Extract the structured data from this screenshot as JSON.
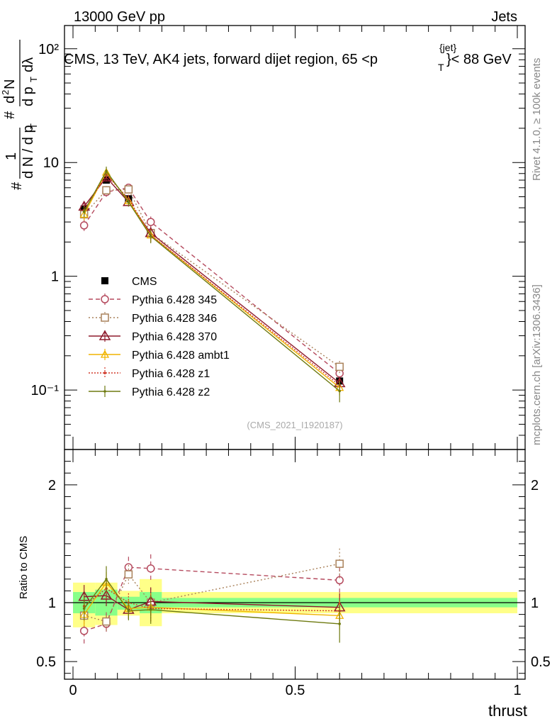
{
  "header": {
    "left": "13000 GeV pp",
    "right": "Jets"
  },
  "side": {
    "rivet": "Rivet 4.1.0, ≥ 100k events",
    "mcplots": "mcplots.cern.ch [arXiv:1306.3436]"
  },
  "watermark": "(CMS_2021_I1920187)",
  "colors": {
    "cms": "#000000",
    "p345": "#b54a5e",
    "p346": "#a9815a",
    "p370": "#8e1a2c",
    "ambt1": "#f0b400",
    "z1": "#d13a2a",
    "z2": "#6e7a10"
  },
  "chart_data": [
    {
      "type": "line",
      "title": "CMS, 13 TeV, AK4 jets, forward dijet region, 65 < p_T^{jet} < 88 GeV",
      "title_parts": {
        "main": "CMS, 13 TeV, AK4 jets, forward dijet region, 65 <p",
        "sub": "T",
        "sup": "{jet}",
        "tail": "}< 88 GeV"
      },
      "ylabel": "1/dN/dp_T # d²N/dp_T dλ",
      "ylabel_parts": {
        "hash1": "#",
        "one": "1",
        "den": "d N / d p",
        "subT": "T",
        "hash2": "#",
        "num": "d",
        "sup2": "2",
        "N": "N",
        "den2a": "d p",
        "den2b": "dλ"
      },
      "yscale": "log",
      "ylim": [
        0.03,
        160
      ],
      "xlim": [
        0,
        1
      ],
      "yticks": [
        {
          "value": 100,
          "label": "10²"
        },
        {
          "value": 10,
          "label": "10"
        },
        {
          "value": 1,
          "label": "1"
        },
        {
          "value": 0.1,
          "label": "10⁻¹"
        }
      ],
      "x": [
        0.025,
        0.075,
        0.125,
        0.175,
        0.6
      ],
      "series": [
        {
          "name": "CMS",
          "values": [
            3.9,
            7.0,
            4.8,
            2.4,
            0.12
          ],
          "errors": [
            0.2,
            0.3,
            0.2,
            0.1,
            0.01
          ]
        },
        {
          "name": "Pythia 6.428 345",
          "values": [
            2.8,
            5.5,
            6.0,
            3.0,
            0.14
          ],
          "errors": [
            0.35,
            0.5,
            0.4,
            0.35,
            0.015
          ]
        },
        {
          "name": "Pythia 6.428 346",
          "values": [
            3.5,
            5.7,
            5.8,
            2.4,
            0.16
          ],
          "errors": [
            0.3,
            0.5,
            0.4,
            0.3,
            0.02
          ]
        },
        {
          "name": "Pythia 6.428 370",
          "values": [
            4.1,
            7.4,
            4.5,
            2.4,
            0.115
          ],
          "errors": [
            0.4,
            0.6,
            0.4,
            0.3,
            0.015
          ]
        },
        {
          "name": "Pythia 6.428 ambt1",
          "values": [
            3.5,
            8.2,
            4.6,
            2.3,
            0.105
          ],
          "errors": [
            0.4,
            0.6,
            0.4,
            0.3,
            0.015
          ]
        },
        {
          "name": "Pythia 6.428 z1",
          "values": [
            3.8,
            7.8,
            4.8,
            2.3,
            0.11
          ],
          "errors": [
            0.4,
            0.6,
            0.4,
            0.3,
            0.015
          ]
        },
        {
          "name": "Pythia 6.428 z2",
          "values": [
            3.7,
            8.4,
            4.5,
            2.25,
            0.098
          ],
          "errors": [
            0.4,
            0.8,
            0.4,
            0.3,
            0.02
          ]
        }
      ]
    },
    {
      "type": "line",
      "ylabel": "Ratio to CMS",
      "xlabel": "thrust",
      "ylim": [
        0.35,
        2.3
      ],
      "xlim": [
        0,
        1
      ],
      "yticks": [
        {
          "value": 0.5,
          "label": "0.5"
        },
        {
          "value": 1,
          "label": "1"
        },
        {
          "value": 2,
          "label": "2"
        }
      ],
      "xticks": [
        {
          "value": 0,
          "label": "0"
        },
        {
          "value": 0.5,
          "label": "0.5"
        },
        {
          "value": 1,
          "label": "1"
        }
      ],
      "bands": [
        {
          "xlo": 0.0,
          "xhi": 0.05,
          "inner": [
            0.91,
            1.09
          ],
          "outer": [
            0.79,
            1.17
          ]
        },
        {
          "xlo": 0.05,
          "xhi": 0.1,
          "inner": [
            0.89,
            1.11
          ],
          "outer": [
            0.81,
            1.17
          ]
        },
        {
          "xlo": 0.1,
          "xhi": 0.15,
          "inner": [
            0.94,
            1.05
          ],
          "outer": [
            0.89,
            1.1
          ]
        },
        {
          "xlo": 0.15,
          "xhi": 0.2,
          "inner": [
            0.91,
            1.09
          ],
          "outer": [
            0.8,
            1.2
          ]
        },
        {
          "xlo": 0.2,
          "xhi": 1.0,
          "inner": [
            0.96,
            1.04
          ],
          "outer": [
            0.91,
            1.09
          ]
        }
      ],
      "x": [
        0.025,
        0.075,
        0.125,
        0.175,
        0.6
      ],
      "series": [
        {
          "name": "Pythia 6.428 345",
          "values": [
            0.76,
            0.82,
            1.3,
            1.29,
            1.19
          ],
          "errors": [
            0.11,
            0.09,
            0.09,
            0.12,
            0.11
          ]
        },
        {
          "name": "Pythia 6.428 346",
          "values": [
            0.89,
            0.84,
            1.24,
            1.0,
            1.33
          ],
          "errors": [
            0.09,
            0.08,
            0.08,
            0.12,
            0.13
          ]
        },
        {
          "name": "Pythia 6.428 370",
          "values": [
            1.05,
            1.06,
            0.94,
            1.01,
            0.96
          ],
          "errors": [
            0.1,
            0.09,
            0.08,
            0.12,
            0.12
          ]
        },
        {
          "name": "Pythia 6.428 ambt1",
          "values": [
            0.9,
            1.17,
            0.95,
            0.96,
            0.89
          ],
          "errors": [
            0.1,
            0.09,
            0.08,
            0.12,
            0.12
          ]
        },
        {
          "name": "Pythia 6.428 z1",
          "values": [
            0.97,
            1.12,
            1.0,
            0.95,
            0.93
          ],
          "errors": [
            0.1,
            0.09,
            0.08,
            0.12,
            0.12
          ]
        },
        {
          "name": "Pythia 6.428 z2",
          "values": [
            0.95,
            1.2,
            0.93,
            0.94,
            0.82
          ],
          "errors": [
            0.1,
            0.11,
            0.08,
            0.12,
            0.16
          ]
        }
      ]
    }
  ]
}
